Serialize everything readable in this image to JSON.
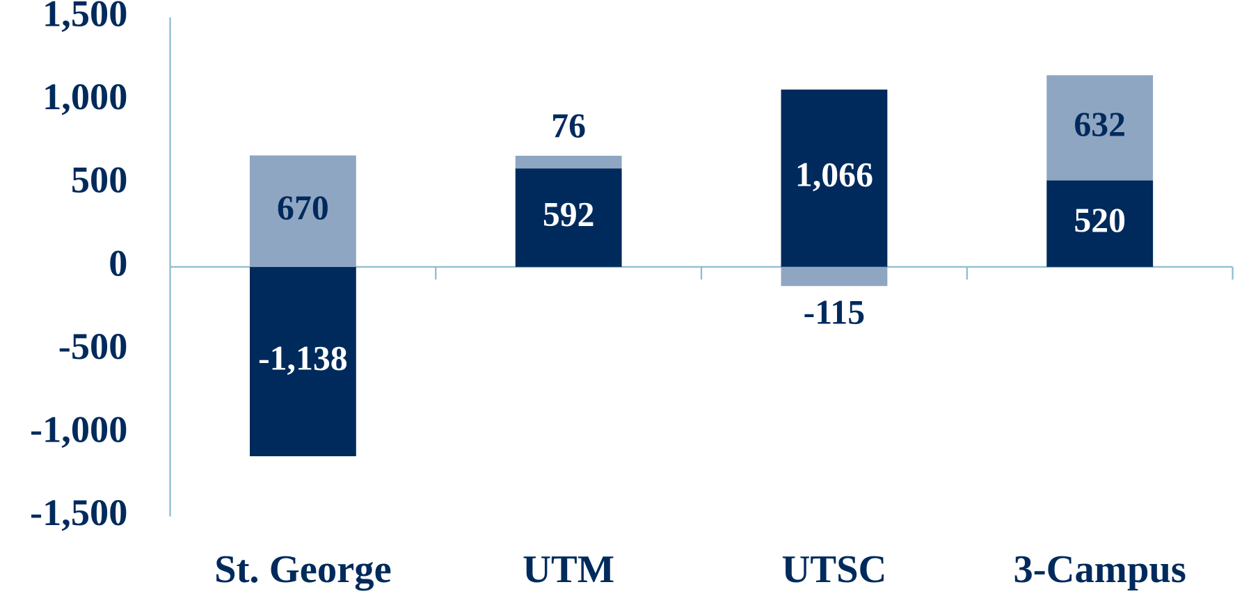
{
  "chart_data": {
    "type": "stacked_bar",
    "categories": [
      "St. George",
      "UTM",
      "UTSC",
      "3-Campus"
    ],
    "series": [
      {
        "color": "#002a5c",
        "values": [
          -1138,
          592,
          1066,
          520
        ],
        "value_labels": [
          "-1,138",
          "592",
          "1,066",
          "520"
        ],
        "label_color": "#ffffff"
      },
      {
        "color": "#8fa6c2",
        "values": [
          670,
          76,
          -115,
          632
        ],
        "value_labels": [
          "670",
          "76",
          "-115",
          "632"
        ],
        "label_color": "#002a5c"
      }
    ],
    "ylim": [
      -1500,
      1500
    ],
    "yticks": [
      {
        "value": -1500,
        "label": "-1,500"
      },
      {
        "value": -1000,
        "label": "-1,000"
      },
      -500,
      0,
      500,
      {
        "value": 1000,
        "label": "1,000"
      },
      {
        "value": 1500,
        "label": "1,500"
      }
    ]
  }
}
